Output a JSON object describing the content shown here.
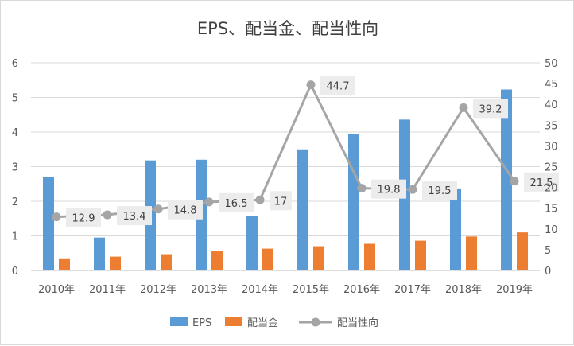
{
  "chart_data": {
    "type": "bar",
    "title": "EPS、配当金、配当性向",
    "categories": [
      "2010年",
      "2011年",
      "2012年",
      "2013年",
      "2014年",
      "2015年",
      "2016年",
      "2017年",
      "2018年",
      "2019年"
    ],
    "series": [
      {
        "name": "EPS",
        "kind": "bar",
        "axis": "left",
        "color": "#5B9BD5",
        "values": [
          2.7,
          0.95,
          3.18,
          3.2,
          1.57,
          3.5,
          3.95,
          4.36,
          2.37,
          5.23
        ]
      },
      {
        "name": "配当金",
        "kind": "bar",
        "axis": "left",
        "color": "#ED7D31",
        "values": [
          0.35,
          0.4,
          0.47,
          0.56,
          0.63,
          0.7,
          0.77,
          0.86,
          0.98,
          1.1
        ]
      },
      {
        "name": "配当性向",
        "kind": "line",
        "axis": "right",
        "color": "#A5A5A5",
        "values": [
          12.9,
          13.4,
          14.8,
          16.5,
          17,
          44.7,
          19.8,
          19.5,
          39.2,
          21.5
        ],
        "labels": [
          "12.9",
          "13.4",
          "14.8",
          "16.5",
          "17",
          "44.7",
          "19.8",
          "19.5",
          "39.2",
          "21.5"
        ]
      }
    ],
    "y_left": {
      "min": 0,
      "max": 6,
      "ticks": [
        "0",
        "1",
        "2",
        "3",
        "4",
        "5",
        "6"
      ]
    },
    "y_right": {
      "min": 0,
      "max": 50,
      "ticks": [
        "0",
        "5",
        "10",
        "15",
        "20",
        "25",
        "30",
        "35",
        "40",
        "45",
        "50"
      ]
    },
    "grid": true,
    "legend_position": "bottom"
  }
}
